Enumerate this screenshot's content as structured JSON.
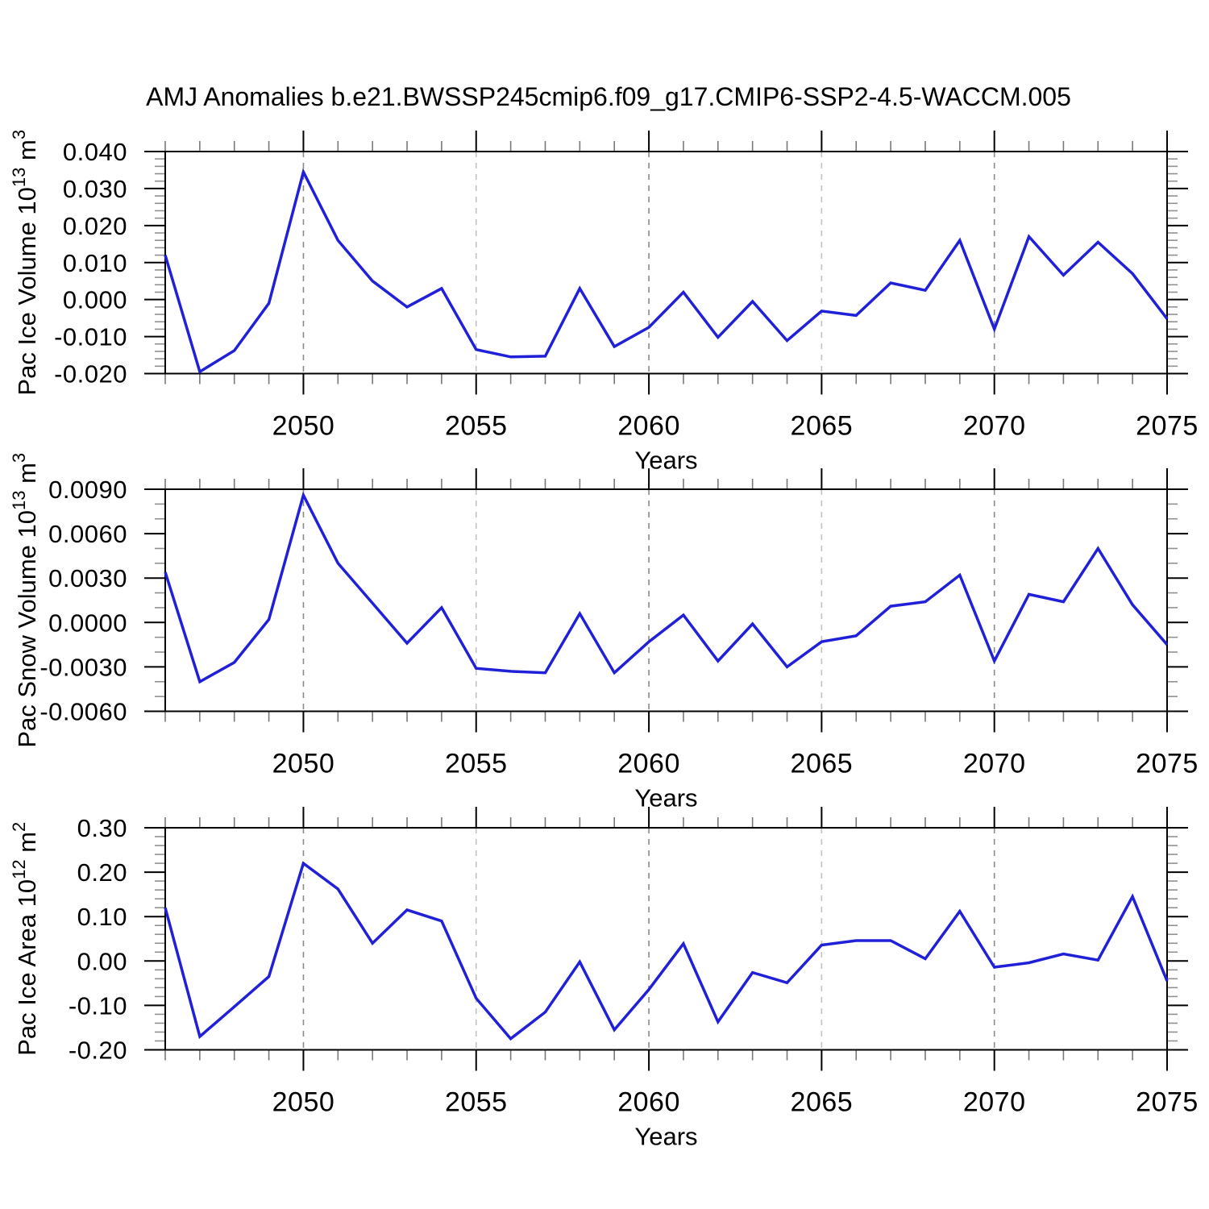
{
  "title": "AMJ Anomalies b.e21.BWSSP245cmip6.f09_g17.CMIP6-SSP2-4.5-WACCM.005",
  "xlabel": "Years",
  "line_color": "#2020d8",
  "chart_data": [
    {
      "type": "line",
      "name": "pac-ice-volume",
      "title": "",
      "xlabel": "Years",
      "ylabel": "Pac Ice Volume 10^13 m^3",
      "ylabel_parts": [
        {
          "t": "Pac Ice Volume 10"
        },
        {
          "t": "13",
          "sup": true
        },
        {
          "t": " m"
        },
        {
          "t": "3",
          "sup": true
        }
      ],
      "x": [
        2046,
        2047,
        2048,
        2049,
        2050,
        2051,
        2052,
        2053,
        2054,
        2055,
        2056,
        2057,
        2058,
        2059,
        2060,
        2061,
        2062,
        2063,
        2064,
        2065,
        2066,
        2067,
        2068,
        2069,
        2070,
        2071,
        2072,
        2073,
        2074,
        2075
      ],
      "values": [
        0.012,
        -0.0195,
        -0.0138,
        -0.001,
        0.0345,
        0.016,
        0.005,
        -0.002,
        0.003,
        -0.0135,
        -0.0155,
        -0.0153,
        0.003,
        -0.0127,
        -0.0075,
        0.002,
        -0.0102,
        -0.0005,
        -0.0111,
        -0.0031,
        -0.0043,
        0.0045,
        0.0025,
        0.016,
        -0.008,
        0.017,
        0.0066,
        0.0155,
        0.007,
        -0.0052
      ],
      "xlim": [
        2046,
        2075
      ],
      "ylim": [
        -0.02,
        0.04
      ],
      "yticks": {
        "values": [
          0.04,
          0.03,
          0.02,
          0.01,
          0.0,
          -0.01,
          -0.02
        ],
        "labels": [
          "0.040",
          "0.030",
          "0.020",
          "0.010",
          "0.000",
          "-0.010",
          "-0.020"
        ],
        "minor_divisions": 5
      },
      "xticks": {
        "values": [
          2050,
          2055,
          2060,
          2065,
          2070,
          2075
        ],
        "labels": [
          "2050",
          "2055",
          "2060",
          "2065",
          "2070",
          "2075"
        ]
      },
      "gridlines_x": [
        2050,
        2055,
        2060,
        2065,
        2070
      ],
      "grid": "vertical-dashed",
      "legend": "none"
    },
    {
      "type": "line",
      "name": "pac-snow-volume",
      "title": "",
      "xlabel": "Years",
      "ylabel": "Pac Snow Volume 10^13 m^3",
      "ylabel_parts": [
        {
          "t": "Pac Snow Volume 10"
        },
        {
          "t": "13",
          "sup": true
        },
        {
          "t": " m"
        },
        {
          "t": "3",
          "sup": true
        }
      ],
      "x": [
        2046,
        2047,
        2048,
        2049,
        2050,
        2051,
        2052,
        2053,
        2054,
        2055,
        2056,
        2057,
        2058,
        2059,
        2060,
        2061,
        2062,
        2063,
        2064,
        2065,
        2066,
        2067,
        2068,
        2069,
        2070,
        2071,
        2072,
        2073,
        2074,
        2075
      ],
      "values": [
        0.0034,
        -0.004,
        -0.0027,
        0.0002,
        0.0086,
        0.004,
        0.0013,
        -0.0014,
        0.001,
        -0.0031,
        -0.0033,
        -0.0034,
        0.0006,
        -0.0034,
        -0.0013,
        0.0005,
        -0.0026,
        -0.0001,
        -0.003,
        -0.0013,
        -0.0009,
        0.0011,
        0.0014,
        0.0032,
        -0.0026,
        0.0019,
        0.0014,
        0.005,
        0.0012,
        -0.0015
      ],
      "xlim": [
        2046,
        2075
      ],
      "ylim": [
        -0.006,
        0.009
      ],
      "yticks": {
        "values": [
          0.009,
          0.006,
          0.003,
          0.0,
          -0.003,
          -0.006
        ],
        "labels": [
          "0.0090",
          "0.0060",
          "0.0030",
          "0.0000",
          "-0.0030",
          "-0.0060"
        ],
        "minor_divisions": 3
      },
      "xticks": {
        "values": [
          2050,
          2055,
          2060,
          2065,
          2070,
          2075
        ],
        "labels": [
          "2050",
          "2055",
          "2060",
          "2065",
          "2070",
          "2075"
        ]
      },
      "gridlines_x": [
        2050,
        2055,
        2060,
        2065,
        2070
      ],
      "grid": "vertical-dashed",
      "legend": "none"
    },
    {
      "type": "line",
      "name": "pac-ice-area",
      "title": "",
      "xlabel": "Years",
      "ylabel": "Pac Ice Area 10^12 m^2",
      "ylabel_parts": [
        {
          "t": "Pac Ice Area 10"
        },
        {
          "t": "12",
          "sup": true
        },
        {
          "t": " m"
        },
        {
          "t": "2",
          "sup": true
        }
      ],
      "x": [
        2046,
        2047,
        2048,
        2049,
        2050,
        2051,
        2052,
        2053,
        2054,
        2055,
        2056,
        2057,
        2058,
        2059,
        2060,
        2061,
        2062,
        2063,
        2064,
        2065,
        2066,
        2067,
        2068,
        2069,
        2070,
        2071,
        2072,
        2073,
        2074,
        2075
      ],
      "values": [
        0.12,
        -0.17,
        -0.103,
        -0.035,
        0.22,
        0.162,
        0.04,
        0.115,
        0.09,
        -0.084,
        -0.175,
        -0.115,
        -0.002,
        -0.155,
        -0.064,
        0.039,
        -0.137,
        -0.026,
        -0.049,
        0.036,
        0.046,
        0.046,
        0.005,
        0.112,
        -0.014,
        -0.004,
        0.016,
        0.002,
        0.145,
        -0.045
      ],
      "xlim": [
        2046,
        2075
      ],
      "ylim": [
        -0.2,
        0.3
      ],
      "yticks": {
        "values": [
          0.3,
          0.2,
          0.1,
          0.0,
          -0.1,
          -0.2
        ],
        "labels": [
          "0.30",
          "0.20",
          "0.10",
          "0.00",
          "-0.10",
          "-0.20"
        ],
        "minor_divisions": 5
      },
      "xticks": {
        "values": [
          2050,
          2055,
          2060,
          2065,
          2070,
          2075
        ],
        "labels": [
          "2050",
          "2055",
          "2060",
          "2065",
          "2070",
          "2075"
        ]
      },
      "gridlines_x": [
        2050,
        2055,
        2060,
        2065,
        2070
      ],
      "grid": "vertical-dashed",
      "legend": "none"
    }
  ]
}
